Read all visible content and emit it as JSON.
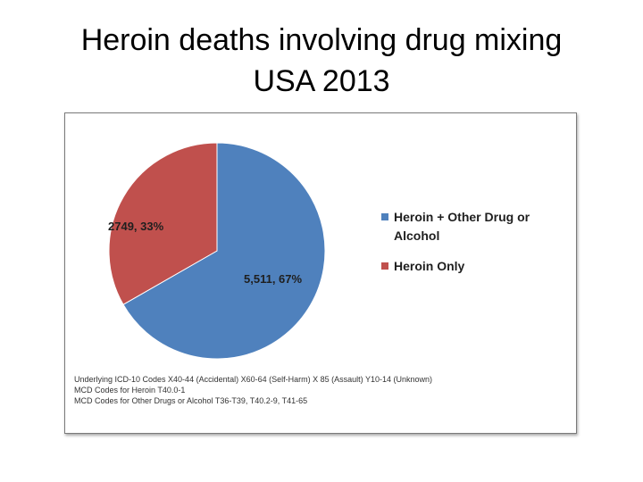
{
  "title": {
    "line1": "Heroin deaths involving drug mixing",
    "line2": "USA 2013"
  },
  "chart_data": {
    "type": "pie",
    "title": "",
    "slices": [
      {
        "name": "Heroin + Other Drug or Alcohol",
        "value": 5511,
        "percent": 67,
        "label": "5,511, 67%",
        "color": "#4f81bd"
      },
      {
        "name": "Heroin Only",
        "value": 2749,
        "percent": 33,
        "label": "2749, 33%",
        "color": "#c0504d"
      }
    ],
    "legend_position": "right"
  },
  "footnotes": [
    "Underlying ICD-10 Codes X40-44 (Accidental) X60-64 (Self-Harm) X 85 (Assault) Y10-14 (Unknown)",
    "MCD Codes for Heroin T40.0-1",
    "MCD Codes for Other Drugs or Alcohol T36-T39, T40.2-9, T41-65"
  ]
}
